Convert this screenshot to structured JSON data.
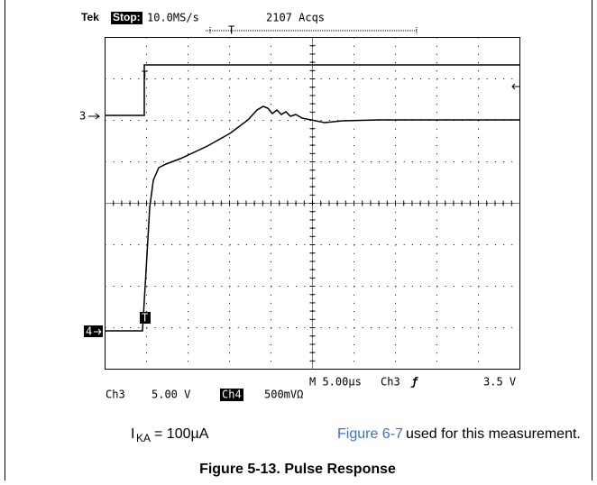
{
  "header": {
    "brand": "Tek",
    "status": "Stop:",
    "rate": "10.0MS/s",
    "acquisitions": "2107 Acqs",
    "trigger_marker": "T"
  },
  "markers": {
    "ch3": "3",
    "ch4": "4",
    "trigger_ch3": "T",
    "trigger_ch4": "T"
  },
  "footer": {
    "ch3_label": "Ch3",
    "ch3_scale": "5.00 V",
    "ch4_label": "Ch4",
    "ch4_scale": "500mVΩ",
    "timebase": "M 5.00µs",
    "trigger_source": "Ch3",
    "trigger_slope": "ƒ",
    "trigger_level": "3.5 V"
  },
  "note": {
    "symbol": "I",
    "subscript": "KA",
    "value": " = 100µA",
    "link": "Figure 6-7",
    "text": " used for this measurement."
  },
  "caption": "Figure 5-13. Pulse Response"
}
